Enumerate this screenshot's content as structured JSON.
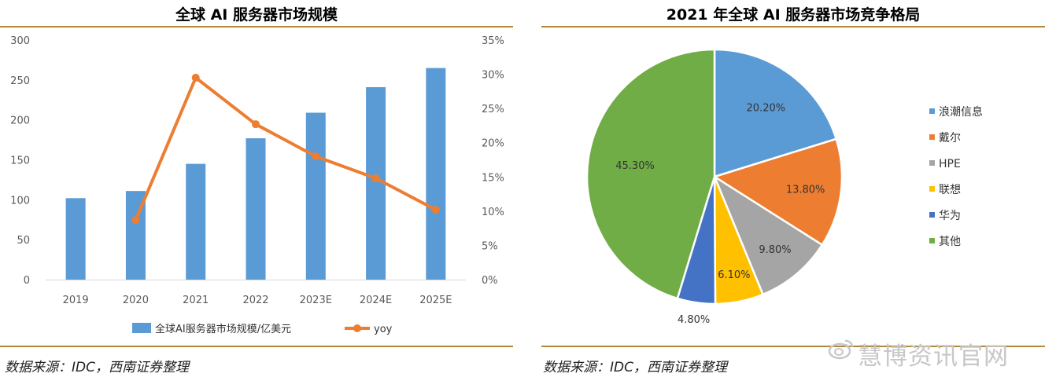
{
  "left": {
    "title": "全球 AI 服务器市场规模",
    "source": "数据来源：IDC，西南证券整理"
  },
  "right": {
    "title": "2021 年全球 AI 服务器市场竞争格局",
    "source": "数据来源：IDC，西南证券整理"
  },
  "watermark": {
    "text": "慧博资讯官网"
  },
  "colors": {
    "bar": "#5b9bd5",
    "line": "#ed7d31",
    "rule": "#b08a3a",
    "pie": [
      "#5b9bd5",
      "#ed7d31",
      "#a5a5a5",
      "#ffc000",
      "#4472c4",
      "#70ad47"
    ]
  },
  "chart_data": [
    {
      "type": "bar",
      "title": "全球 AI 服务器市场规模",
      "categories": [
        "2019",
        "2020",
        "2021",
        "2022",
        "2023E",
        "2024E",
        "2025E"
      ],
      "series": [
        {
          "name": "全球AI服务器市场规模/亿美元",
          "type": "bar",
          "axis": "left",
          "values": [
            102,
            111,
            145,
            177,
            209,
            241,
            265
          ]
        },
        {
          "name": "yoy",
          "type": "line",
          "axis": "right",
          "values": [
            null,
            8.7,
            29.5,
            22.7,
            18.0,
            14.8,
            10.2
          ]
        }
      ],
      "ylim": [
        0,
        300
      ],
      "yticks": [
        "0",
        "50",
        "100",
        "150",
        "200",
        "250",
        "300"
      ],
      "y2lim": [
        0,
        35
      ],
      "y2ticks": [
        "0%",
        "5%",
        "10%",
        "15%",
        "20%",
        "25%",
        "30%",
        "35%"
      ],
      "grid": false,
      "legend": "bottom"
    },
    {
      "type": "pie",
      "title": "2021 年全球 AI 服务器市场竞争格局",
      "categories": [
        "浪潮信息",
        "戴尔",
        "HPE",
        "联想",
        "华为",
        "其他"
      ],
      "values": [
        20.2,
        13.8,
        9.8,
        6.1,
        4.8,
        45.3
      ],
      "labels": [
        "20.20%",
        "13.80%",
        "9.80%",
        "6.10%",
        "4.80%",
        "45.30%"
      ],
      "legend": "right"
    }
  ]
}
